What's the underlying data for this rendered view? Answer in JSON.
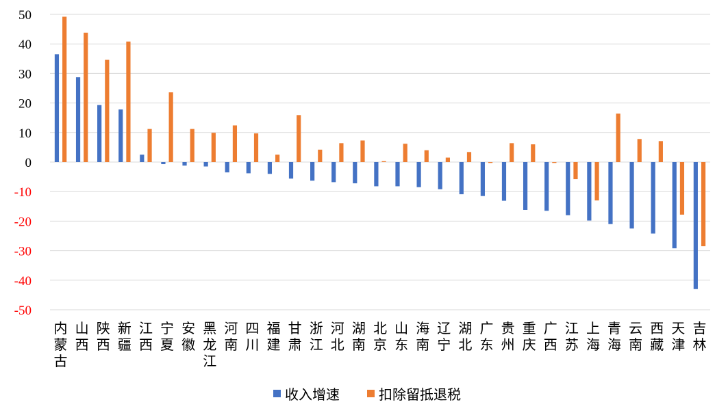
{
  "chart_data": {
    "type": "bar",
    "title": "",
    "xlabel": "",
    "ylabel": "",
    "ylim": [
      -50,
      50
    ],
    "yticks": [
      50,
      40,
      30,
      20,
      10,
      0,
      -10,
      -20,
      -30,
      -40,
      -50
    ],
    "grid": true,
    "legend_position": "bottom",
    "colors": {
      "series1": "#4472C4",
      "series2": "#ED7D31",
      "negative_tick": "#FF0000",
      "positive_tick": "#000000",
      "grid": "#D9D9D9"
    },
    "categories": [
      "内蒙古",
      "山西",
      "陕西",
      "新疆",
      "江西",
      "宁夏",
      "安徽",
      "黑龙江",
      "河南",
      "四川",
      "福建",
      "甘肃",
      "浙江",
      "河北",
      "湖南",
      "北京",
      "山东",
      "海南",
      "辽宁",
      "湖北",
      "广东",
      "贵州",
      "重庆",
      "广西",
      "江苏",
      "上海",
      "青海",
      "云南",
      "西藏",
      "天津",
      "吉林"
    ],
    "series": [
      {
        "name": "收入增速",
        "values": [
          36.5,
          28.7,
          19.3,
          17.8,
          2.5,
          -0.7,
          -1.2,
          -1.5,
          -3.5,
          -3.8,
          -4.0,
          -5.6,
          -6.3,
          -6.8,
          -7.2,
          -8.2,
          -8.2,
          -8.5,
          -9.2,
          -10.9,
          -11.5,
          -13.1,
          -16.2,
          -16.5,
          -18.0,
          -19.8,
          -21.0,
          -22.5,
          -24.2,
          -29.2,
          -43.0
        ]
      },
      {
        "name": "扣除留抵退税",
        "values": [
          49.2,
          43.8,
          34.6,
          40.8,
          11.2,
          23.6,
          11.2,
          9.9,
          12.4,
          9.7,
          2.5,
          15.9,
          4.2,
          6.4,
          7.3,
          0.3,
          6.2,
          4.0,
          1.5,
          3.4,
          -0.3,
          6.4,
          6.0,
          -0.3,
          -5.8,
          -13.0,
          16.4,
          7.8,
          7.1,
          -17.8,
          -28.5
        ]
      }
    ]
  }
}
